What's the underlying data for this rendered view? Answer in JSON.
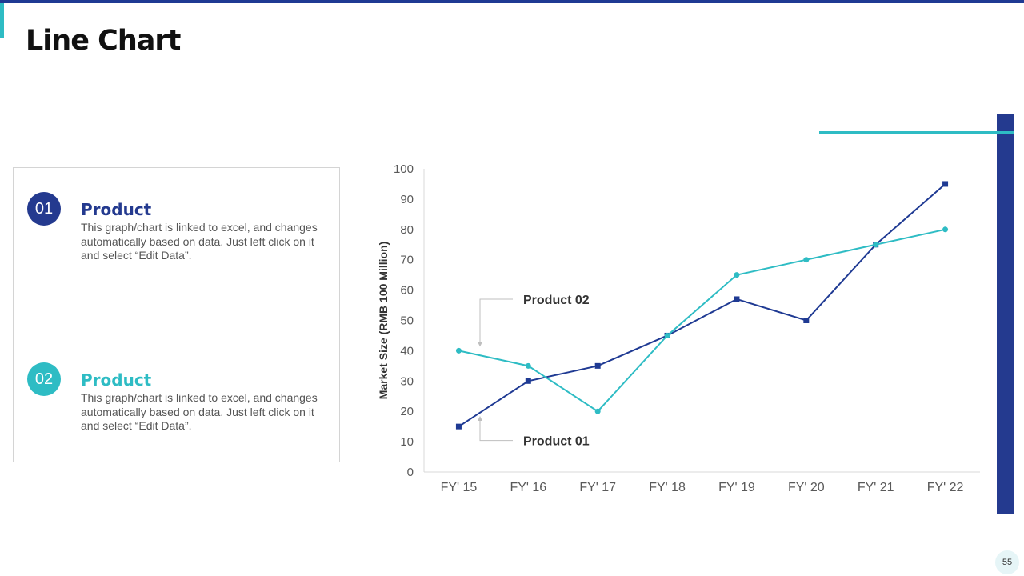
{
  "slide": {
    "title": "Line Chart",
    "page_number": "55"
  },
  "items": [
    {
      "number": "01",
      "title": "Product",
      "description": "This graph/chart is linked to excel, and changes automatically based on data. Just left click on it and select “Edit Data”.",
      "color": "#243a8f"
    },
    {
      "number": "02",
      "title": "Product",
      "description": "This graph/chart is linked to excel, and changes automatically based on data. Just left click on it and select “Edit Data”.",
      "color": "#2ebcc4"
    }
  ],
  "chart_data": {
    "type": "line",
    "title": "",
    "xlabel": "",
    "ylabel": "Market Size (RMB 100 Million)",
    "ylim": [
      0,
      100
    ],
    "yticks": [
      0,
      10,
      20,
      30,
      40,
      50,
      60,
      70,
      80,
      90,
      100
    ],
    "grid": false,
    "categories": [
      "FY' 15",
      "FY' 16",
      "FY' 17",
      "FY' 18",
      "FY' 19",
      "FY' 20",
      "FY' 21",
      "FY' 22"
    ],
    "series": [
      {
        "name": "Product 01",
        "values": [
          15,
          30,
          35,
          45,
          57,
          50,
          75,
          95
        ],
        "color": "#1f3a93",
        "marker": "square"
      },
      {
        "name": "Product 02",
        "values": [
          40,
          35,
          20,
          45,
          65,
          70,
          75,
          80
        ],
        "color": "#2ebcc4",
        "marker": "circle"
      }
    ],
    "annotations": [
      {
        "text": "Product 02",
        "series": 1,
        "point": 0
      },
      {
        "text": "Product 01",
        "series": 0,
        "point": 0
      }
    ]
  }
}
